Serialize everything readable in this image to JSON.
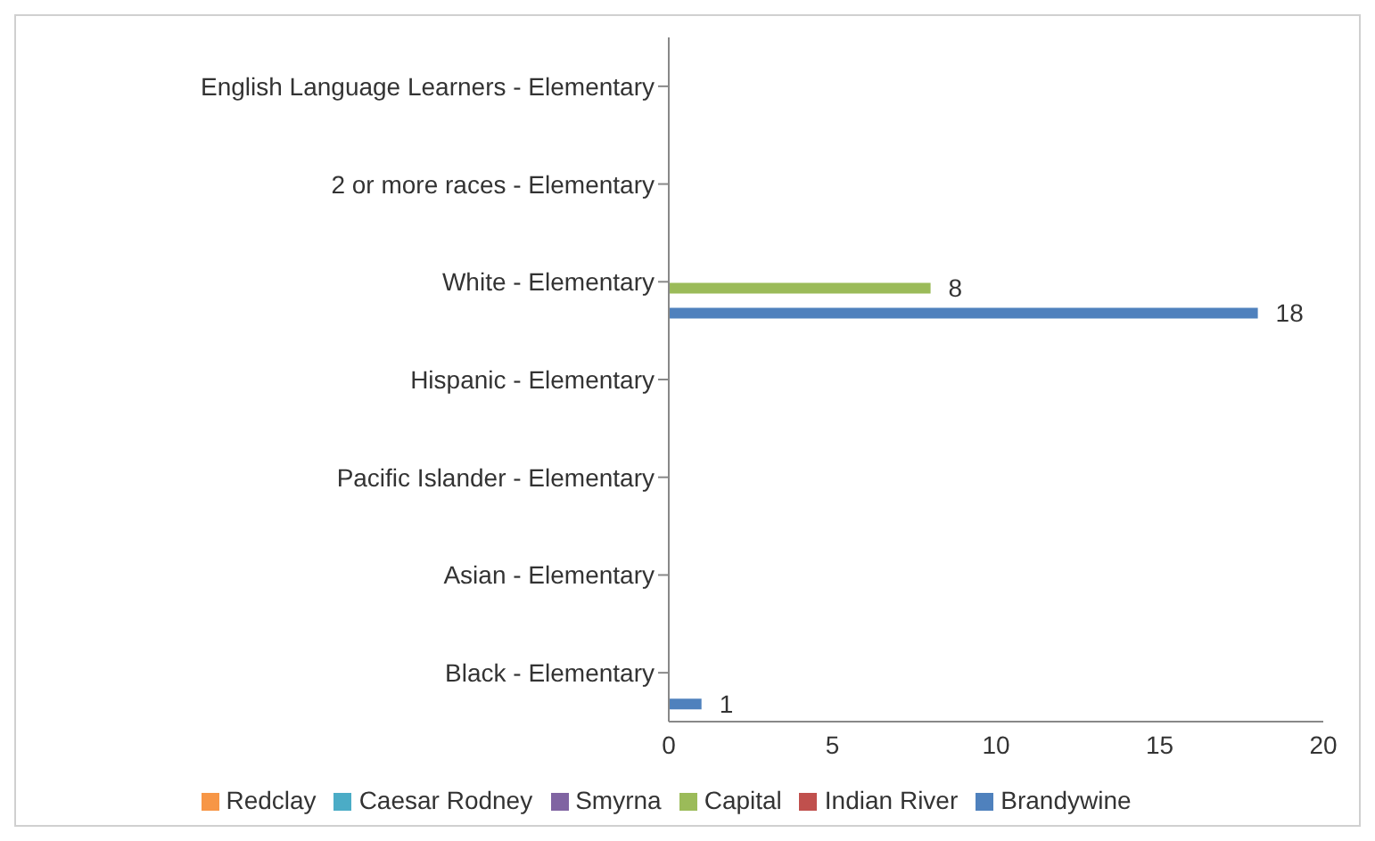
{
  "chart_data": {
    "type": "bar",
    "orientation": "horizontal",
    "categories": [
      "English Language Learners - Elementary",
      "2 or more races - Elementary",
      "White - Elementary",
      "Hispanic - Elementary",
      "Pacific Islander - Elementary",
      "Asian - Elementary",
      "Black - Elementary"
    ],
    "series": [
      {
        "name": "Redclay",
        "color": "#f79646",
        "values": [
          null,
          null,
          null,
          null,
          null,
          null,
          null
        ]
      },
      {
        "name": "Caesar Rodney",
        "color": "#4bacc6",
        "values": [
          null,
          null,
          null,
          null,
          null,
          null,
          null
        ]
      },
      {
        "name": "Smyrna",
        "color": "#8064a2",
        "values": [
          null,
          null,
          null,
          null,
          null,
          null,
          null
        ]
      },
      {
        "name": "Capital",
        "color": "#9bbb59",
        "values": [
          null,
          null,
          8,
          null,
          null,
          null,
          null
        ],
        "value_labels": [
          null,
          null,
          "8",
          null,
          null,
          null,
          null
        ]
      },
      {
        "name": "Indian River",
        "color": "#c0504d",
        "values": [
          null,
          null,
          null,
          null,
          null,
          null,
          null
        ]
      },
      {
        "name": "Brandywine",
        "color": "#4f81bd",
        "values": [
          null,
          null,
          18,
          null,
          null,
          null,
          1
        ],
        "value_labels": [
          null,
          null,
          "18",
          null,
          null,
          null,
          "1"
        ]
      }
    ],
    "xlim": [
      0,
      20
    ],
    "xticks": [
      0,
      5,
      10,
      15,
      20
    ],
    "grid": false,
    "legend": "bottom"
  }
}
